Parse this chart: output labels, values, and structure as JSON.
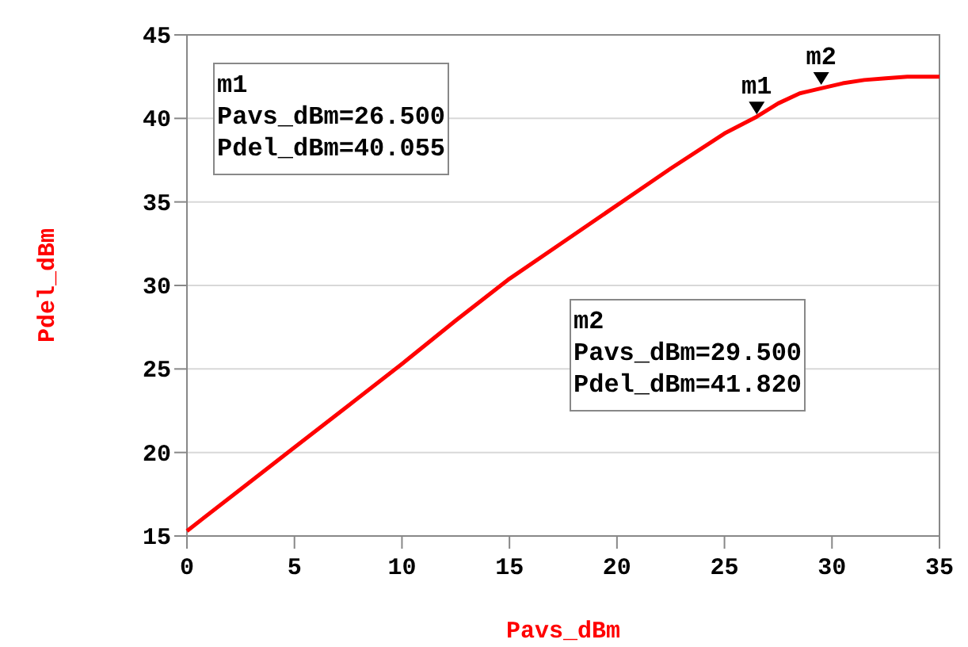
{
  "chart_data": {
    "type": "line",
    "xlabel": "Pavs_dBm",
    "ylabel": "Pdel_dBm",
    "x": [
      0,
      2.5,
      5,
      7.5,
      10,
      12.5,
      15,
      17.5,
      20,
      22.5,
      25,
      26.5,
      27.5,
      28.5,
      29.5,
      30.5,
      31.5,
      32.5,
      33.5,
      35
    ],
    "series": [
      {
        "color": "#ff0000",
        "values": [
          15.3,
          17.8,
          20.3,
          22.8,
          25.3,
          27.9,
          30.4,
          32.6,
          34.8,
          37,
          39.1,
          40.1,
          40.9,
          41.5,
          41.8,
          42.1,
          42.3,
          42.4,
          42.5,
          42.5
        ]
      }
    ],
    "xlim": [
      0,
      35
    ],
    "xticks": [
      0,
      5,
      10,
      15,
      20,
      25,
      30,
      35
    ],
    "ylim": [
      15,
      45
    ],
    "yticks": [
      15,
      20,
      25,
      30,
      35,
      40,
      45
    ],
    "grid": "y",
    "marker": "none",
    "line_style": "solid",
    "annotations": [
      {
        "text": "m1",
        "x": 26.5,
        "y": 40.055
      },
      {
        "text": "m2",
        "x": 29.5,
        "y": 41.82
      },
      "m1\nPavs_dBm=26.500\nPdel_dBm=40.055",
      "m2\nPavs_dBm=29.500\nPdel_dBm=41.820"
    ]
  }
}
